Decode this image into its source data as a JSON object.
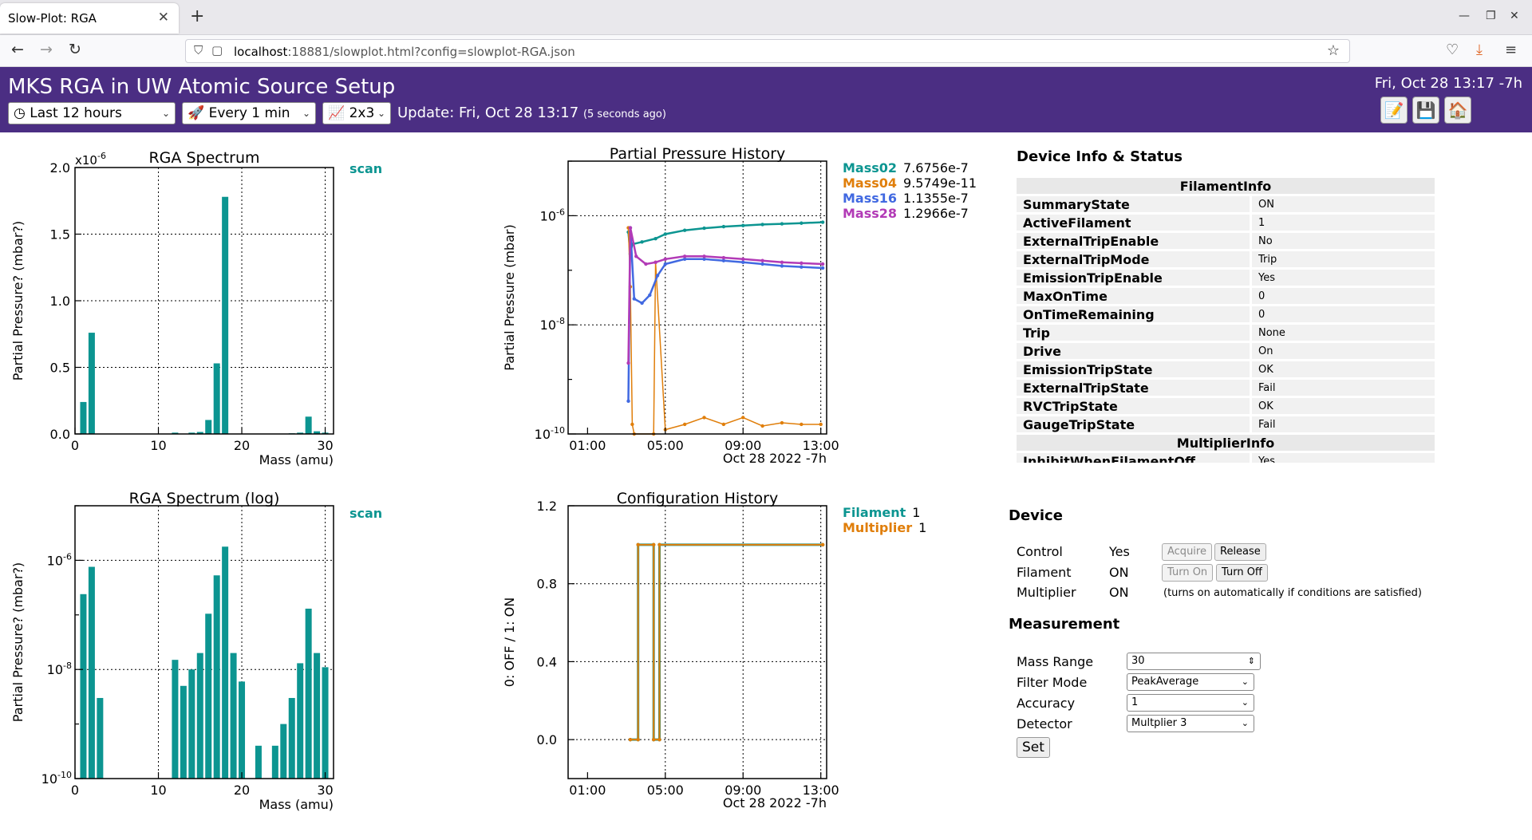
{
  "browser": {
    "tab_title": "Slow-Plot: RGA",
    "url_host": "localhost",
    "url_rest": ":18881/slowplot.html?config=slowplot-RGA.json"
  },
  "header": {
    "title": "MKS RGA in UW Atomic Source Setup",
    "clock": "Fri, Oct 28 13:17 -7h",
    "range_select": "Last 12 hours",
    "interval_select": "Every 1 min",
    "layout_select": "2x3",
    "update_text": "Update: Fri, Oct 28 13:17",
    "update_ago": "(5 seconds ago)",
    "brand_color": "#4b2e83"
  },
  "plots": {
    "spectrum": {
      "title": "RGA Spectrum",
      "ylabel": "Partial Pressure? (mbar?)",
      "xlabel": "Mass (amu)",
      "multiplier": "x10",
      "multiplier_exp": "-6",
      "legend": "scan",
      "ytick_labels": [
        "0.0",
        "0.5",
        "1.0",
        "1.5",
        "2.0"
      ],
      "xtick_labels": [
        "0",
        "10",
        "20",
        "30"
      ]
    },
    "spectrum_log": {
      "title": "RGA Spectrum (log)",
      "ylabel": "Partial Pressure? (mbar?)",
      "xlabel": "Mass (amu)",
      "legend": "scan",
      "ytick_exps": [
        "-6",
        "-8",
        "-10"
      ],
      "xtick_labels": [
        "0",
        "10",
        "20",
        "30"
      ]
    },
    "history": {
      "title": "Partial Pressure History",
      "ylabel": "Partial Pressure (mbar)",
      "xtick_labels": [
        "01:00",
        "05:00",
        "09:00",
        "13:00"
      ],
      "date_label": "Oct 28 2022 -7h",
      "ytick_exps": [
        "-6",
        "-8",
        "-10"
      ],
      "legend": [
        {
          "name": "Mass02",
          "value": "7.6756e-7",
          "color": "#0c9591"
        },
        {
          "name": "Mass04",
          "value": "9.5749e-11",
          "color": "#e07e0a"
        },
        {
          "name": "Mass16",
          "value": "1.1355e-7",
          "color": "#4169e1"
        },
        {
          "name": "Mass28",
          "value": "1.2966e-7",
          "color": "#b23ab6"
        }
      ]
    },
    "config": {
      "title": "Configuration History",
      "ylabel": "0: OFF / 1: ON",
      "xtick_labels": [
        "01:00",
        "05:00",
        "09:00",
        "13:00"
      ],
      "date_label": "Oct 28 2022 -7h",
      "ytick_labels": [
        "0.0",
        "0.4",
        "0.8",
        "1.2"
      ],
      "legend": [
        {
          "name": "Filament",
          "value": "1",
          "color": "#0c9591"
        },
        {
          "name": "Multiplier",
          "value": "1",
          "color": "#e07e0a"
        }
      ]
    }
  },
  "chart_data": [
    {
      "type": "bar",
      "title": "RGA Spectrum",
      "xlabel": "Mass (amu)",
      "ylabel": "Partial Pressure? (mbar?)",
      "xlim": [
        0,
        31
      ],
      "ylim": [
        0,
        2e-06
      ],
      "grid": true,
      "x": [
        1,
        2,
        12,
        14,
        15,
        16,
        17,
        18,
        26,
        27,
        28,
        29,
        30
      ],
      "values": [
        2.4e-07,
        7.6e-07,
        1e-08,
        1e-08,
        1.5e-08,
        1.05e-07,
        5.3e-07,
        1.78e-06,
        5e-09,
        1e-08,
        1.3e-07,
        2e-08,
        1e-08
      ],
      "series": [
        {
          "name": "scan"
        }
      ]
    },
    {
      "type": "bar",
      "title": "RGA Spectrum (log)",
      "xlabel": "Mass (amu)",
      "ylabel": "Partial Pressure? (mbar?)",
      "yscale": "log",
      "ylim": [
        1e-10,
        1e-05
      ],
      "grid": true,
      "x": [
        1,
        2,
        3,
        12,
        13,
        14,
        15,
        16,
        17,
        18,
        19,
        20,
        22,
        24,
        25,
        26,
        27,
        28,
        29,
        30
      ],
      "values": [
        2.4e-07,
        7.6e-07,
        3e-09,
        1.5e-08,
        5e-09,
        1e-08,
        2e-08,
        1.05e-07,
        5.3e-07,
        1.78e-06,
        2e-08,
        6e-09,
        4e-10,
        4e-10,
        1e-09,
        3e-09,
        1.3e-08,
        1.3e-07,
        2e-08,
        1.1e-08
      ],
      "series": [
        {
          "name": "scan"
        }
      ]
    },
    {
      "type": "line",
      "title": "Partial Pressure History",
      "ylabel": "Partial Pressure (mbar)",
      "xlabel": "Oct 28 2022 -7h",
      "x_unit": "hour",
      "xlim": [
        0.0,
        13.3
      ],
      "yscale": "log",
      "ylim": [
        1e-10,
        1e-05
      ],
      "grid": true,
      "series": [
        {
          "name": "Mass02",
          "color": "#0c9591",
          "x": [
            3.1,
            3.2,
            3.3,
            3.8,
            4.5,
            5.0,
            6.0,
            7.0,
            8.0,
            9.0,
            10.0,
            11.0,
            12.0,
            13.1
          ],
          "values": [
            5e-07,
            2e-07,
            3e-07,
            3.3e-07,
            3.8e-07,
            4.6e-07,
            5.4e-07,
            5.9e-07,
            6.3e-07,
            6.6e-07,
            6.9e-07,
            7.1e-07,
            7.3e-07,
            7.6e-07
          ]
        },
        {
          "name": "Mass04",
          "color": "#e07e0a",
          "x": [
            3.1,
            3.2,
            3.3,
            3.4,
            4.4,
            4.5,
            5.0,
            6.0,
            7.0,
            8.0,
            9.0,
            10.0,
            11.0,
            12.0,
            13.0
          ],
          "values": [
            6e-07,
            5e-08,
            1.5e-10,
            1e-10,
            1e-10,
            1.4e-07,
            1.2e-10,
            1.5e-10,
            2e-10,
            1.5e-10,
            2e-10,
            1.4e-10,
            1.6e-10,
            1.5e-10,
            1.5e-10
          ]
        },
        {
          "name": "Mass16",
          "color": "#4169e1",
          "x": [
            3.1,
            3.2,
            3.4,
            3.8,
            4.2,
            4.6,
            5.0,
            6.0,
            7.0,
            8.0,
            9.0,
            10.0,
            11.0,
            12.0,
            13.1
          ],
          "values": [
            4e-10,
            6e-07,
            3e-08,
            2.5e-08,
            3.5e-08,
            8e-08,
            1.3e-07,
            1.6e-07,
            1.6e-07,
            1.5e-07,
            1.4e-07,
            1.3e-07,
            1.2e-07,
            1.15e-07,
            1.1e-07
          ]
        },
        {
          "name": "Mass28",
          "color": "#b23ab6",
          "x": [
            3.1,
            3.2,
            3.5,
            4.0,
            4.5,
            5.0,
            6.0,
            7.0,
            8.0,
            9.0,
            10.0,
            11.0,
            12.0,
            13.1
          ],
          "values": [
            2e-09,
            6e-07,
            1.8e-07,
            1.3e-07,
            1.4e-07,
            1.6e-07,
            1.8e-07,
            1.8e-07,
            1.7e-07,
            1.6e-07,
            1.5e-07,
            1.4e-07,
            1.35e-07,
            1.3e-07
          ]
        }
      ]
    },
    {
      "type": "line",
      "title": "Configuration History",
      "ylabel": "0: OFF / 1: ON",
      "xlabel": "Oct 28 2022 -7h",
      "x_unit": "hour",
      "xlim": [
        0.0,
        13.3
      ],
      "ylim": [
        -0.2,
        1.2
      ],
      "grid": true,
      "series": [
        {
          "name": "Filament",
          "color": "#0c9591",
          "x": [
            3.2,
            3.6,
            3.6,
            4.4,
            4.4,
            4.7,
            4.7,
            13.1
          ],
          "values": [
            0,
            0,
            1,
            1,
            0,
            0,
            1,
            1
          ]
        },
        {
          "name": "Multiplier",
          "color": "#e07e0a",
          "x": [
            3.2,
            3.6,
            3.6,
            4.4,
            4.4,
            4.7,
            4.7,
            13.1
          ],
          "values": [
            0,
            0,
            1,
            1,
            0,
            0,
            1,
            1
          ]
        }
      ]
    }
  ],
  "device_info": {
    "title": "Device Info & Status",
    "sections": [
      {
        "name": "FilamentInfo",
        "rows": [
          {
            "k": "SummaryState",
            "v": "ON"
          },
          {
            "k": "ActiveFilament",
            "v": "1"
          },
          {
            "k": "ExternalTripEnable",
            "v": "No"
          },
          {
            "k": "ExternalTripMode",
            "v": "Trip"
          },
          {
            "k": "EmissionTripEnable",
            "v": "Yes"
          },
          {
            "k": "MaxOnTime",
            "v": "0"
          },
          {
            "k": "OnTimeRemaining",
            "v": "0"
          },
          {
            "k": "Trip",
            "v": "None"
          },
          {
            "k": "Drive",
            "v": "On"
          },
          {
            "k": "EmissionTripState",
            "v": "OK"
          },
          {
            "k": "ExternalTripState",
            "v": "Fail"
          },
          {
            "k": "RVCTripState",
            "v": "OK"
          },
          {
            "k": "GaugeTripState",
            "v": "Fail"
          }
        ]
      },
      {
        "name": "MultiplierInfo",
        "rows": [
          {
            "k": "InhibitWhenFilamentOff",
            "v": "Yes"
          }
        ]
      }
    ]
  },
  "device": {
    "title": "Device",
    "control_label": "Control",
    "control_value": "Yes",
    "acquire": "Acquire",
    "release": "Release",
    "filament_label": "Filament",
    "filament_value": "ON",
    "turn_on": "Turn On",
    "turn_off": "Turn Off",
    "multiplier_label": "Multiplier",
    "multiplier_value": "ON",
    "multiplier_note": "(turns on automatically if conditions are satisfied)"
  },
  "measurement": {
    "title": "Measurement",
    "mass_range_label": "Mass Range",
    "mass_range_value": "30",
    "filter_mode_label": "Filter Mode",
    "filter_mode_value": "PeakAverage",
    "accuracy_label": "Accuracy",
    "accuracy_value": "1",
    "detector_label": "Detector",
    "detector_value": "Multplier 3",
    "set": "Set"
  }
}
